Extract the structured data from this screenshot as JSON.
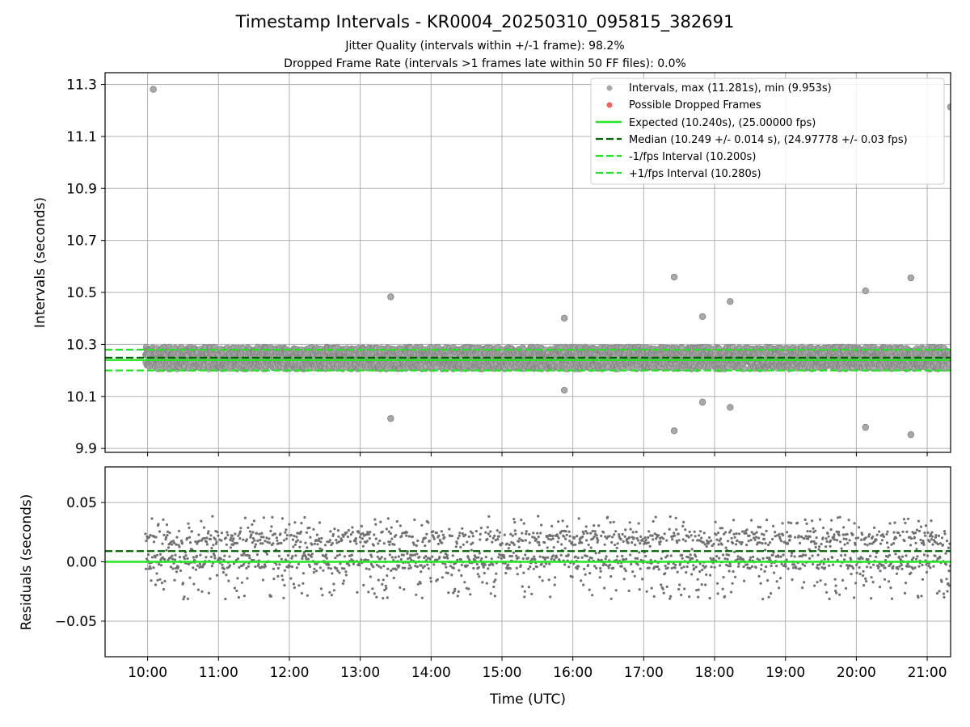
{
  "header": {
    "title": "Timestamp Intervals - KR0004_20250310_095815_382691",
    "subtitle_line1": "Jitter Quality (intervals within +/-1 frame): 98.2%",
    "subtitle_line2": "Dropped Frame Rate (intervals >1 frames late within 50 FF files): 0.0%"
  },
  "colors": {
    "points": "#808080",
    "dropped": "#f06060",
    "expected": "#22e622",
    "median": "#006400",
    "bounds": "#22e622",
    "grid": "#b0b0b0"
  },
  "chart_data": [
    {
      "id": "intervals",
      "type": "scatter",
      "ylabel": "Intervals (seconds)",
      "xlim": [
        9.4,
        21.33
      ],
      "ylim": [
        9.885,
        11.345
      ],
      "yticks": [
        9.9,
        10.1,
        10.3,
        10.5,
        10.7,
        10.9,
        11.1,
        11.3
      ],
      "ytick_labels": [
        "9.9",
        "10.1",
        "10.3",
        "10.5",
        "10.7",
        "10.9",
        "11.1",
        "11.3"
      ],
      "grid": true,
      "legend_position": "top-right",
      "legend": [
        {
          "label": "Intervals, max (11.281s), min (9.953s)",
          "style": "marker-gray"
        },
        {
          "label": "Possible Dropped Frames",
          "style": "marker-red"
        },
        {
          "label": "Expected (10.240s), (25.00000 fps)",
          "style": "line-solid-green"
        },
        {
          "label": "Median (10.249 +/- 0.014 s), (24.97778 +/- 0.03 fps)",
          "style": "line-dashed-darkgreen"
        },
        {
          "label": "-1/fps Interval (10.200s)",
          "style": "line-dashed-green"
        },
        {
          "label": "+1/fps Interval (10.280s)",
          "style": "line-dashed-green"
        }
      ],
      "hlines": {
        "expected": 10.24,
        "median": 10.249,
        "lower": 10.2,
        "upper": 10.28
      },
      "band": {
        "t_start": 9.97,
        "t_end": 21.33,
        "y_min": 10.205,
        "y_max": 10.29,
        "step_hours": 0.00285
      },
      "outliers": [
        {
          "t": 10.08,
          "y": 11.281
        },
        {
          "t": 13.43,
          "y": 10.483
        },
        {
          "t": 13.43,
          "y": 10.015
        },
        {
          "t": 15.88,
          "y": 10.401
        },
        {
          "t": 15.88,
          "y": 10.124
        },
        {
          "t": 17.43,
          "y": 10.559
        },
        {
          "t": 17.43,
          "y": 9.968
        },
        {
          "t": 17.83,
          "y": 10.407
        },
        {
          "t": 17.83,
          "y": 10.078
        },
        {
          "t": 18.22,
          "y": 10.465
        },
        {
          "t": 18.22,
          "y": 10.058
        },
        {
          "t": 20.13,
          "y": 10.506
        },
        {
          "t": 20.13,
          "y": 9.981
        },
        {
          "t": 20.77,
          "y": 10.556
        },
        {
          "t": 20.77,
          "y": 9.953
        },
        {
          "t": 21.33,
          "y": 11.213
        }
      ]
    },
    {
      "id": "residuals",
      "type": "scatter",
      "xlabel": "Time (UTC)",
      "ylabel": "Residuals (seconds)",
      "xlim": [
        9.4,
        21.33
      ],
      "ylim": [
        -0.08,
        0.08
      ],
      "yticks": [
        -0.05,
        0.0,
        0.05
      ],
      "ytick_labels": [
        "−0.05",
        "0.00",
        "0.05"
      ],
      "xticks": [
        10,
        11,
        12,
        13,
        14,
        15,
        16,
        17,
        18,
        19,
        20,
        21
      ],
      "xtick_labels": [
        "10:00",
        "11:00",
        "12:00",
        "13:00",
        "14:00",
        "15:00",
        "16:00",
        "17:00",
        "18:00",
        "19:00",
        "20:00",
        "21:00"
      ],
      "grid": true,
      "hlines": {
        "zero": 0.0,
        "median_offset": 0.009
      },
      "point_levels": [
        0.0,
        0.02
      ],
      "spread": 0.045,
      "step_hours": 0.0057
    }
  ]
}
